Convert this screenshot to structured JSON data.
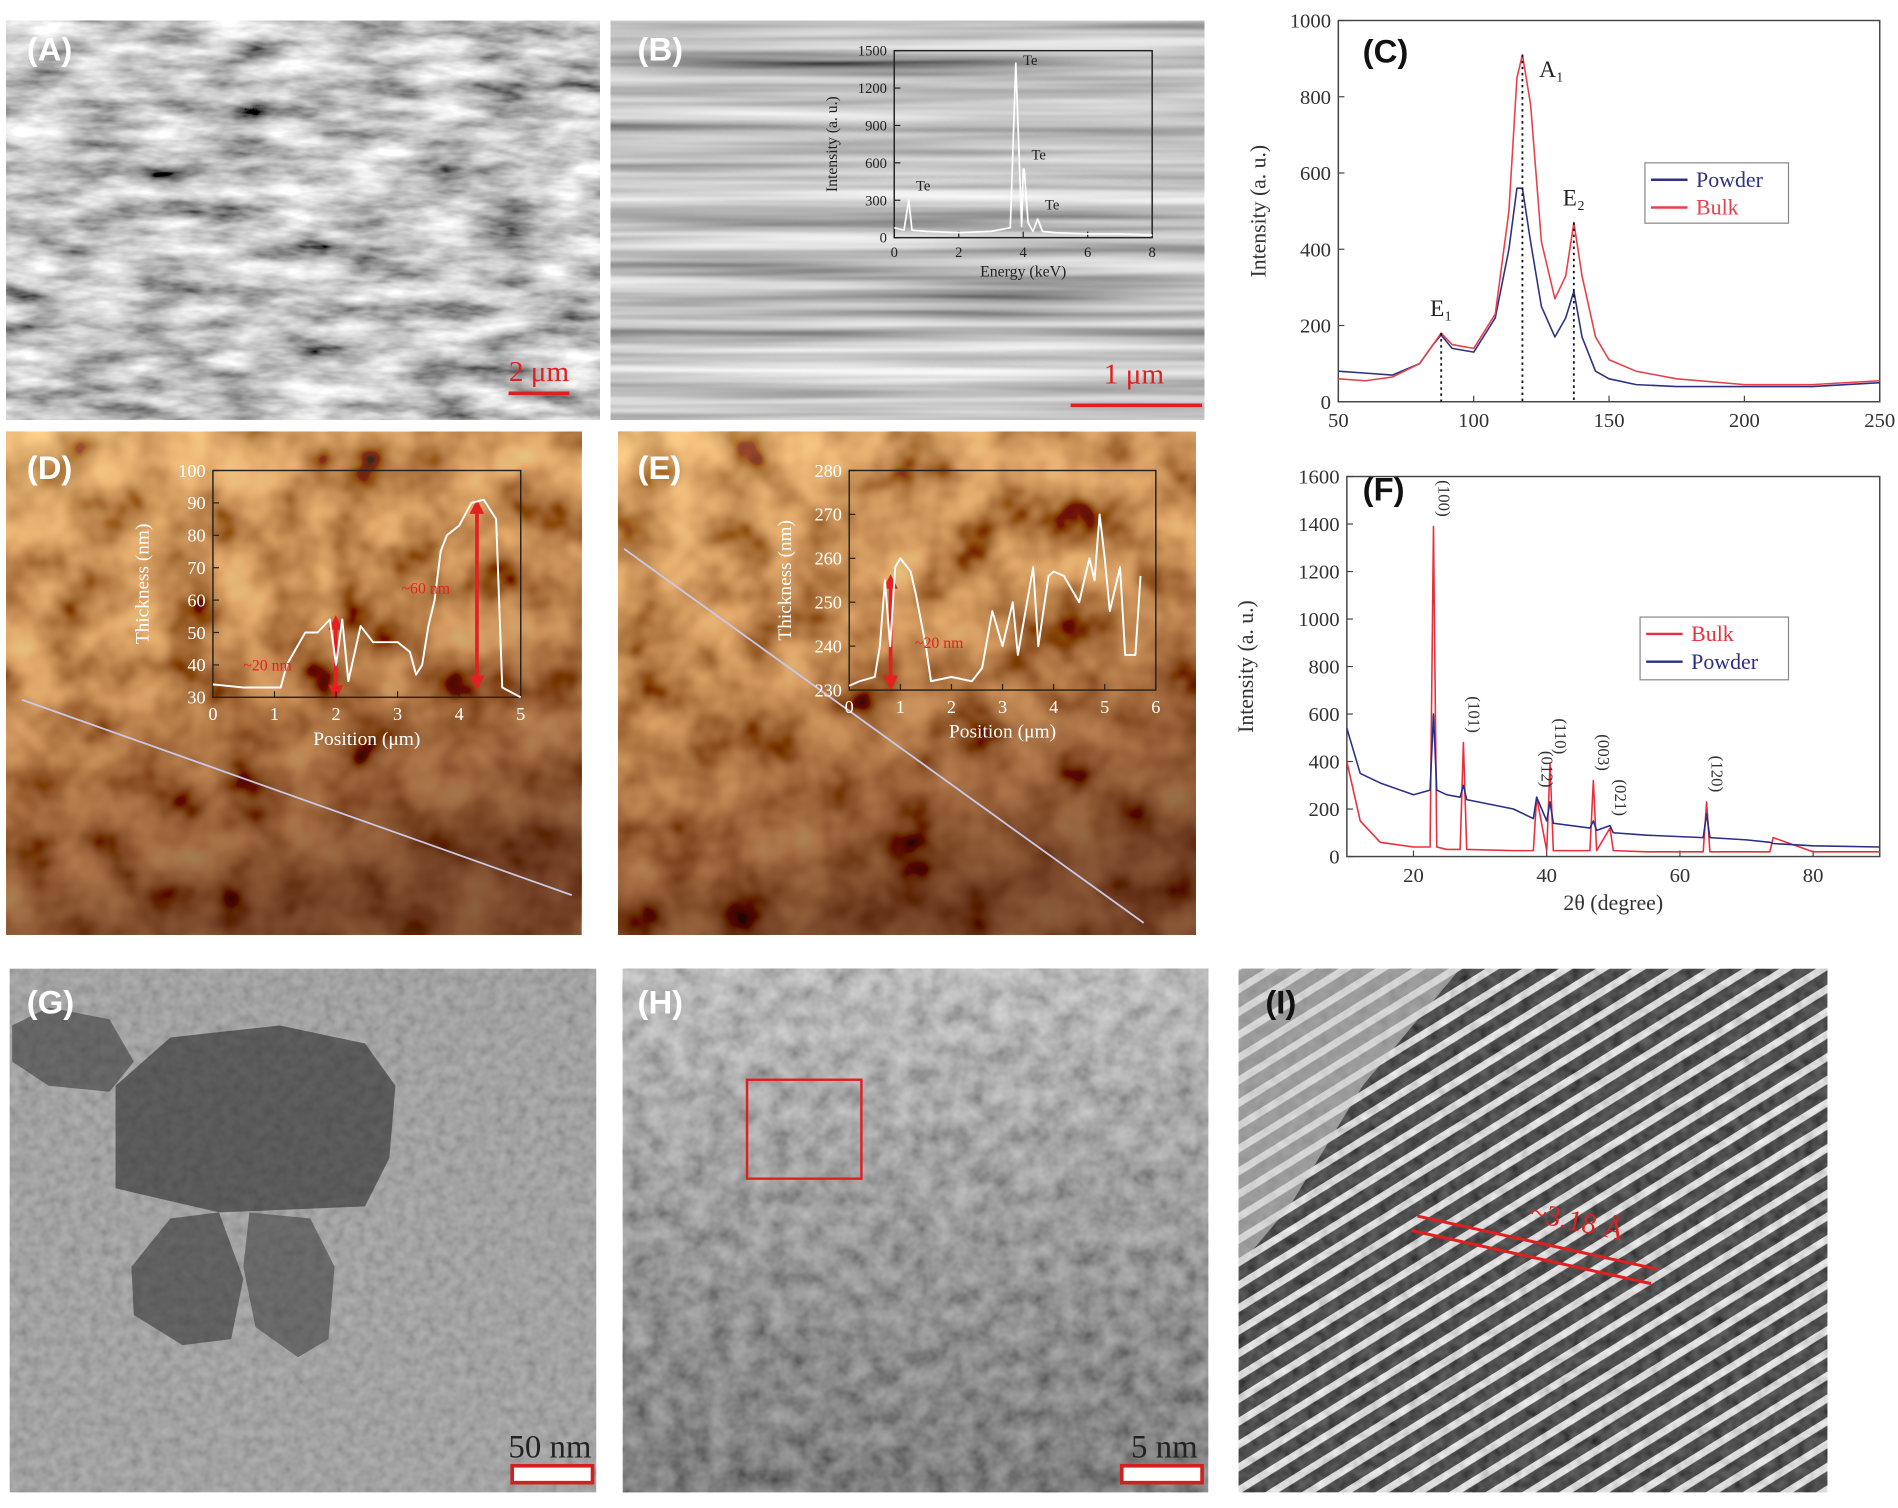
{
  "panels": {
    "labels": [
      "(A)",
      "(B)",
      "(C)",
      "(D)",
      "(E)",
      "(F)",
      "(G)",
      "(H)",
      "(I)"
    ],
    "scale_bars": [
      "2 μm",
      "1 μm",
      "50 nm",
      "5 nm"
    ],
    "lattice_spacing": "~3.18 Å"
  },
  "chart_data": [
    {
      "type": "line",
      "ylabel": "Intensity (a. u.)",
      "x": [
        50,
        60,
        70,
        80,
        85,
        88,
        92,
        100,
        108,
        113,
        116,
        118,
        121,
        125,
        130,
        134,
        137,
        140,
        145,
        150,
        160,
        175,
        200,
        225,
        250
      ],
      "xlim": [
        50,
        250
      ],
      "xticks": [
        50,
        100,
        150,
        200,
        250
      ],
      "ylim": [
        0,
        1000
      ],
      "yticks": [
        0,
        200,
        400,
        600,
        800,
        1000
      ],
      "series": [
        {
          "name": "Powder",
          "color": "#2e3280",
          "values": [
            80,
            75,
            70,
            100,
            150,
            175,
            140,
            130,
            220,
            400,
            560,
            560,
            420,
            250,
            170,
            220,
            290,
            170,
            80,
            60,
            45,
            40,
            40,
            40,
            50
          ]
        },
        {
          "name": "Bulk",
          "color": "#e8404a",
          "values": [
            60,
            55,
            65,
            100,
            150,
            180,
            150,
            140,
            230,
            500,
            850,
            910,
            780,
            420,
            270,
            330,
            470,
            330,
            170,
            110,
            80,
            60,
            45,
            45,
            55
          ]
        }
      ],
      "legend": "center right",
      "peaks": [
        {
          "label": "E₁",
          "x": 88
        },
        {
          "label": "A₁",
          "x": 118
        },
        {
          "label": "E₂",
          "x": 137
        }
      ],
      "peak_lines": "dotted"
    },
    {
      "type": "line",
      "xlabel": "2θ (degree)",
      "ylabel": "Intensity (a. u.)",
      "x": [
        10,
        12,
        15,
        20,
        22.5,
        23,
        23.5,
        25,
        27,
        27.5,
        28,
        35,
        38,
        38.5,
        40,
        40.5,
        41,
        46.5,
        47,
        47.5,
        49.5,
        50,
        55,
        63.5,
        64,
        64.5,
        70,
        73.5,
        74,
        80,
        90
      ],
      "xlim": [
        10,
        90
      ],
      "xticks": [
        20,
        40,
        60,
        80
      ],
      "ylim": [
        0,
        1600
      ],
      "yticks": [
        0,
        200,
        400,
        600,
        800,
        1000,
        1200,
        1400,
        1600
      ],
      "series": [
        {
          "name": "Bulk",
          "color": "#e8303c",
          "values": [
            400,
            150,
            60,
            40,
            40,
            1390,
            40,
            30,
            30,
            480,
            30,
            25,
            25,
            250,
            25,
            390,
            25,
            25,
            320,
            25,
            120,
            25,
            20,
            20,
            230,
            20,
            20,
            20,
            80,
            20,
            20
          ]
        },
        {
          "name": "Powder",
          "color": "#2a2f85",
          "values": [
            540,
            350,
            310,
            260,
            280,
            600,
            280,
            260,
            250,
            300,
            240,
            200,
            160,
            250,
            150,
            230,
            140,
            120,
            150,
            110,
            130,
            100,
            90,
            80,
            180,
            80,
            70,
            60,
            55,
            45,
            40
          ]
        }
      ],
      "legend": "center right",
      "peaks": [
        {
          "label": "(100)",
          "x": 23
        },
        {
          "label": "(101)",
          "x": 27.5
        },
        {
          "label": "(012)",
          "x": 38.5
        },
        {
          "label": "(110)",
          "x": 40.5
        },
        {
          "label": "(003)",
          "x": 47
        },
        {
          "label": "(021)",
          "x": 49.5
        },
        {
          "label": "(120)",
          "x": 64
        }
      ]
    },
    {
      "type": "line",
      "xlabel": "Energy (keV)",
      "ylabel": "Intensity (a. u.)",
      "x": [
        0,
        0.3,
        0.45,
        0.55,
        1,
        2,
        3,
        3.6,
        3.77,
        3.95,
        4.0,
        4.03,
        4.15,
        4.3,
        4.45,
        4.6,
        5,
        6,
        7,
        8
      ],
      "xlim": [
        0,
        8
      ],
      "xticks": [
        0,
        2,
        4,
        6,
        8
      ],
      "ylim": [
        0,
        1500
      ],
      "yticks": [
        0,
        300,
        600,
        900,
        1200,
        1500
      ],
      "color": "#ffffff",
      "values": [
        80,
        60,
        300,
        60,
        50,
        40,
        50,
        80,
        1400,
        90,
        550,
        550,
        120,
        50,
        150,
        50,
        40,
        30,
        30,
        20
      ],
      "peaks": [
        {
          "label": "Te",
          "x": 0.45
        },
        {
          "label": "Te",
          "x": 3.77
        },
        {
          "label": "Te",
          "x": 4.03
        },
        {
          "label": "Te",
          "x": 4.45
        }
      ]
    },
    {
      "type": "line",
      "xlabel": "Position (μm)",
      "ylabel": "Thickness (nm)",
      "x": [
        0,
        0.5,
        1.1,
        1.2,
        1.5,
        1.7,
        1.9,
        2.0,
        2.1,
        2.2,
        2.4,
        2.6,
        3,
        3.2,
        3.3,
        3.4,
        3.5,
        3.6,
        3.7,
        3.8,
        4.0,
        4.2,
        4.4,
        4.6,
        4.7,
        4.8,
        5.0
      ],
      "xlim": [
        0,
        5
      ],
      "xticks": [
        0,
        1,
        2,
        3,
        4,
        5
      ],
      "ylim": [
        30,
        100
      ],
      "yticks": [
        30,
        40,
        50,
        60,
        70,
        80,
        90,
        100
      ],
      "color": "#ffffff",
      "values": [
        34,
        33,
        33,
        40,
        50,
        50,
        54,
        40,
        54,
        35,
        52,
        47,
        47,
        44,
        37,
        40,
        52,
        60,
        75,
        80,
        83,
        90,
        91,
        85,
        33,
        32,
        30
      ],
      "annotations": [
        "~20 nm",
        "~60 nm"
      ]
    },
    {
      "type": "line",
      "xlabel": "Position (μm)",
      "ylabel": "Thickness (nm)",
      "x": [
        0,
        0.2,
        0.5,
        0.6,
        0.7,
        0.8,
        0.9,
        1.0,
        1.2,
        1.3,
        1.5,
        1.6,
        2.0,
        2.4,
        2.6,
        2.8,
        3.0,
        3.2,
        3.3,
        3.6,
        3.7,
        3.9,
        4.0,
        4.2,
        4.5,
        4.7,
        4.8,
        4.9,
        5.0,
        5.1,
        5.3,
        5.4,
        5.6,
        5.7
      ],
      "xlim": [
        0,
        6
      ],
      "xticks": [
        0,
        1,
        2,
        3,
        4,
        5,
        6
      ],
      "ylim": [
        230,
        280
      ],
      "yticks": [
        230,
        240,
        250,
        260,
        270,
        280
      ],
      "color": "#ffffff",
      "values": [
        231,
        232,
        233,
        240,
        255,
        240,
        258,
        260,
        257,
        252,
        240,
        232,
        233,
        232,
        235,
        248,
        240,
        250,
        238,
        258,
        240,
        256,
        257,
        256,
        250,
        260,
        255,
        270,
        260,
        248,
        258,
        238,
        238,
        256
      ],
      "annotations": [
        "~20 nm"
      ]
    }
  ]
}
